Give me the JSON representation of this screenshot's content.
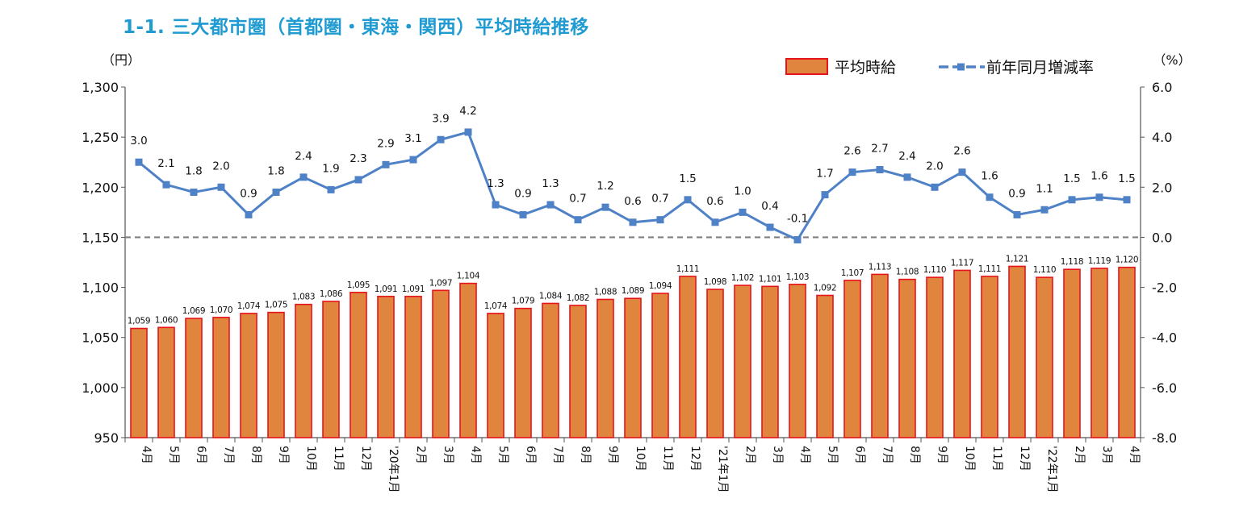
{
  "title": "1-1. 三大都市圏（首都圏・東海・関西）平均時給推移",
  "colors": {
    "bar_fill": "#e0853e",
    "bar_stroke": "#e8141b",
    "line": "#4f81c7",
    "title": "#1f9bd1",
    "zero_line": "#7f7f7f"
  },
  "chart_data": {
    "type": "bar",
    "unit_left": "（円）",
    "unit_right": "（%）",
    "categories": [
      "4月",
      "5月",
      "6月",
      "7月",
      "8月",
      "9月",
      "10月",
      "11月",
      "12月",
      "'20年1月",
      "2月",
      "3月",
      "4月",
      "5月",
      "6月",
      "7月",
      "8月",
      "9月",
      "10月",
      "11月",
      "12月",
      "'21年1月",
      "2月",
      "3月",
      "4月",
      "5月",
      "6月",
      "7月",
      "8月",
      "9月",
      "10月",
      "11月",
      "12月",
      "'22年1月",
      "2月",
      "3月",
      "4月"
    ],
    "series": [
      {
        "name": "平均時給",
        "type": "bar",
        "axis": "left",
        "values": [
          1059,
          1060,
          1069,
          1070,
          1074,
          1075,
          1083,
          1086,
          1095,
          1091,
          1091,
          1097,
          1104,
          1074,
          1079,
          1084,
          1082,
          1088,
          1089,
          1094,
          1111,
          1098,
          1102,
          1101,
          1103,
          1092,
          1107,
          1113,
          1108,
          1110,
          1117,
          1111,
          1121,
          1110,
          1118,
          1119,
          1120
        ],
        "labels": [
          "1,059",
          "1,060",
          "1,069",
          "1,070",
          "1,074",
          "1,075",
          "1,083",
          "1,086",
          "1,095",
          "1,091",
          "1,091",
          "1,097",
          "1,104",
          "1,074",
          "1,079",
          "1,084",
          "1,082",
          "1,088",
          "1,089",
          "1,094",
          "1,111",
          "1,098",
          "1,102",
          "1,101",
          "1,103",
          "1,092",
          "1,107",
          "1,113",
          "1,108",
          "1,110",
          "1,117",
          "1,111",
          "1,121",
          "1,110",
          "1,118",
          "1,119",
          "1,120"
        ]
      },
      {
        "name": "前年同月増減率",
        "type": "line",
        "axis": "right",
        "values": [
          3.0,
          2.1,
          1.8,
          2.0,
          0.9,
          1.8,
          2.4,
          1.9,
          2.3,
          2.9,
          3.1,
          3.9,
          4.2,
          1.3,
          0.9,
          1.3,
          0.7,
          1.2,
          0.6,
          0.7,
          1.5,
          0.6,
          1.0,
          0.4,
          -0.1,
          1.7,
          2.6,
          2.7,
          2.4,
          2.0,
          2.6,
          1.6,
          0.9,
          1.1,
          1.5,
          1.6,
          1.5
        ],
        "labels": [
          "3.0",
          "2.1",
          "1.8",
          "2.0",
          "0.9",
          "1.8",
          "2.4",
          "1.9",
          "2.3",
          "2.9",
          "3.1",
          "3.9",
          "4.2",
          "1.3",
          "0.9",
          "1.3",
          "0.7",
          "1.2",
          "0.6",
          "0.7",
          "1.5",
          "0.6",
          "1.0",
          "0.4",
          "-0.1",
          "1.7",
          "2.6",
          "2.7",
          "2.4",
          "2.0",
          "2.6",
          "1.6",
          "0.9",
          "1.1",
          "1.5",
          "1.6",
          "1.5"
        ]
      }
    ],
    "y_left": {
      "lim": [
        950,
        1300
      ],
      "ticks": [
        950,
        1000,
        1050,
        1100,
        1150,
        1200,
        1250,
        1300
      ],
      "tick_labels": [
        "950",
        "1,000",
        "1,050",
        "1,100",
        "1,150",
        "1,200",
        "1,250",
        "1,300"
      ]
    },
    "y_right": {
      "lim": [
        -8.0,
        6.0
      ],
      "ticks": [
        -8.0,
        -6.0,
        -4.0,
        -2.0,
        0.0,
        2.0,
        4.0,
        6.0
      ],
      "tick_labels": [
        "-8.0",
        "-6.0",
        "-4.0",
        "-2.0",
        "0.0",
        "2.0",
        "4.0",
        "6.0"
      ]
    },
    "legend_position": "top-right",
    "grid": false,
    "zero_line": true
  }
}
